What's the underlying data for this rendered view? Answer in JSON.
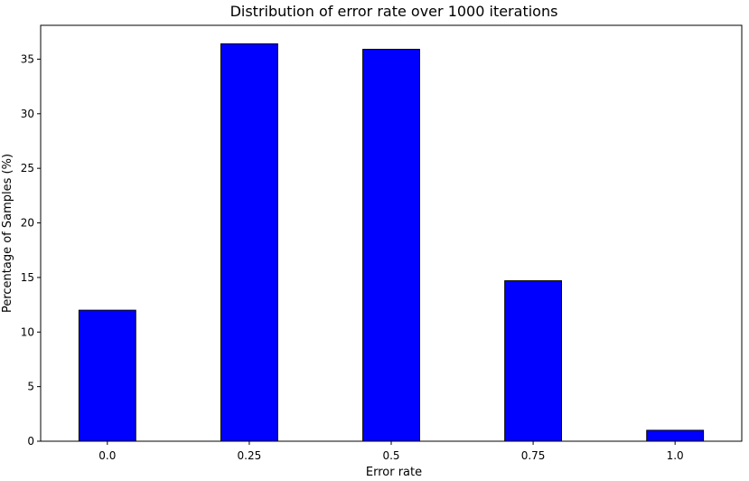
{
  "chart_data": {
    "type": "bar",
    "title": "Distribution of error rate over 1000 iterations",
    "xlabel": "Error rate",
    "ylabel": "Percentage of Samples (%)",
    "categories": [
      "0.0",
      "0.25",
      "0.5",
      "0.75",
      "1.0"
    ],
    "values": [
      12.0,
      36.4,
      35.9,
      14.7,
      1.0
    ],
    "ylim": [
      0,
      38.1
    ],
    "yticks": [
      0,
      5,
      10,
      15,
      20,
      25,
      30,
      35
    ],
    "grid": false,
    "bar_color": "#0000ff",
    "bar_edge_color": "#000000"
  }
}
